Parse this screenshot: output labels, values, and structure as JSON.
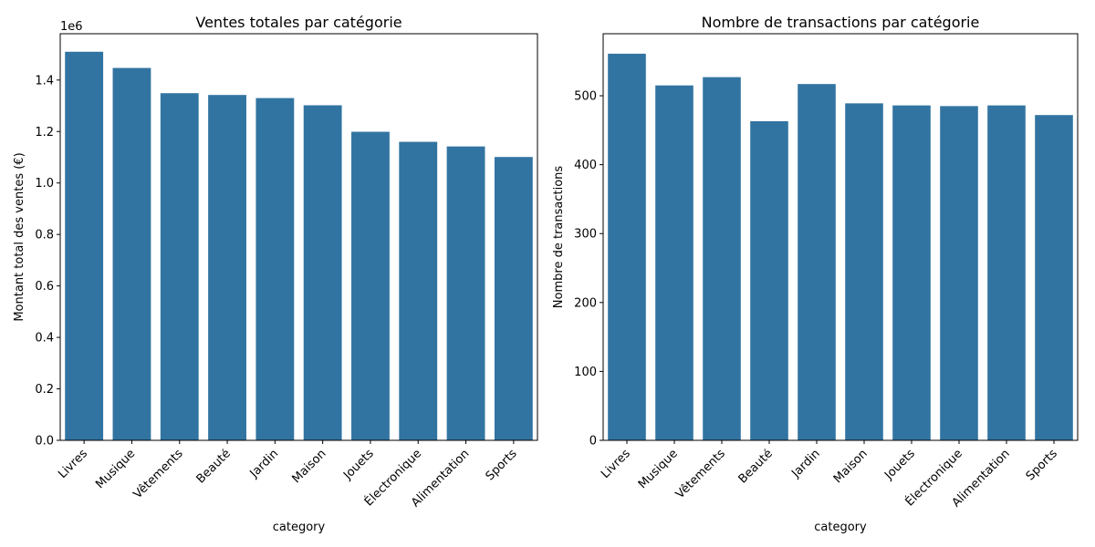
{
  "chart_data": [
    {
      "type": "bar",
      "title": "Ventes totales par catégorie",
      "xlabel": "category",
      "ylabel": "Montant total des ventes (€)",
      "offset_label": "1e6",
      "categories": [
        "Livres",
        "Musique",
        "Vêtements",
        "Beauté",
        "Jardin",
        "Maison",
        "Jouets",
        "Électronique",
        "Alimentation",
        "Sports"
      ],
      "values": [
        1510000,
        1447000,
        1349000,
        1342000,
        1330000,
        1302000,
        1199000,
        1160000,
        1142000,
        1101000
      ],
      "ylim": [
        0,
        1580000
      ],
      "yticks": [
        0,
        200000,
        400000,
        600000,
        800000,
        1000000,
        1200000,
        1400000
      ],
      "ytick_labels": [
        "0.0",
        "0.2",
        "0.4",
        "0.6",
        "0.8",
        "1.0",
        "1.2",
        "1.4"
      ],
      "color": "#3274a1",
      "grid": false
    },
    {
      "type": "bar",
      "title": "Nombre de transactions par catégorie",
      "xlabel": "category",
      "ylabel": "Nombre de transactions",
      "categories": [
        "Livres",
        "Musique",
        "Vêtements",
        "Beauté",
        "Jardin",
        "Maison",
        "Jouets",
        "Électronique",
        "Alimentation",
        "Sports"
      ],
      "values": [
        561,
        515,
        527,
        463,
        517,
        489,
        486,
        485,
        486,
        472
      ],
      "ylim": [
        0,
        590
      ],
      "yticks": [
        0,
        100,
        200,
        300,
        400,
        500
      ],
      "ytick_labels": [
        "0",
        "100",
        "200",
        "300",
        "400",
        "500"
      ],
      "color": "#3274a1",
      "grid": false
    }
  ]
}
